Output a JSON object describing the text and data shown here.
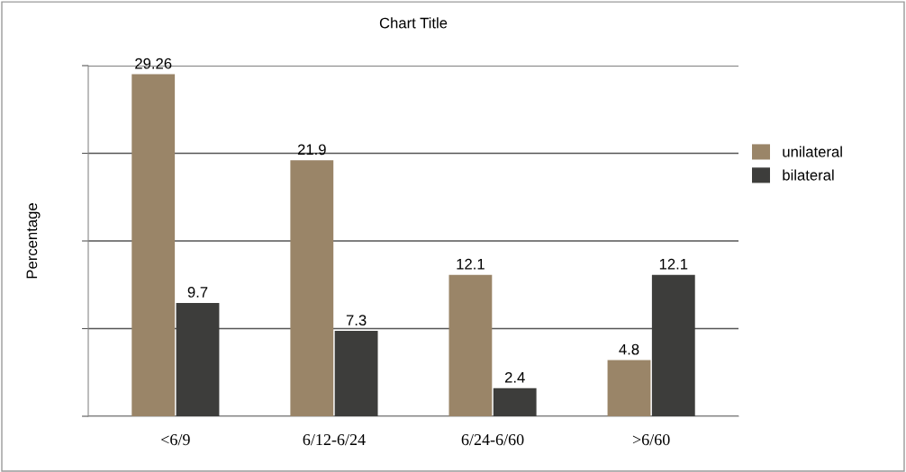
{
  "chart_data": {
    "type": "bar",
    "title": "Chart Title",
    "ylabel": "Percentage",
    "categories": [
      "<6/9",
      "6/12-6/24",
      "6/24-6/60",
      ">6/60"
    ],
    "series": [
      {
        "name": "unilateral",
        "color": "#9a8568",
        "values": [
          29.26,
          21.9,
          12.1,
          4.8
        ]
      },
      {
        "name": "bilateral",
        "color": "#3d3d3b",
        "values": [
          9.7,
          7.3,
          2.4,
          12.1
        ]
      }
    ],
    "ylim": [
      0,
      30
    ],
    "yticks": [
      {
        "value": 0,
        "label": null
      },
      {
        "value": 7.5,
        "label": null
      },
      {
        "value": 15,
        "label": null
      },
      {
        "value": 22.5,
        "label": null
      },
      {
        "value": 30,
        "label": null
      }
    ],
    "tick_labels": "x",
    "grid": "y",
    "legend": "right",
    "data_labels": true
  }
}
